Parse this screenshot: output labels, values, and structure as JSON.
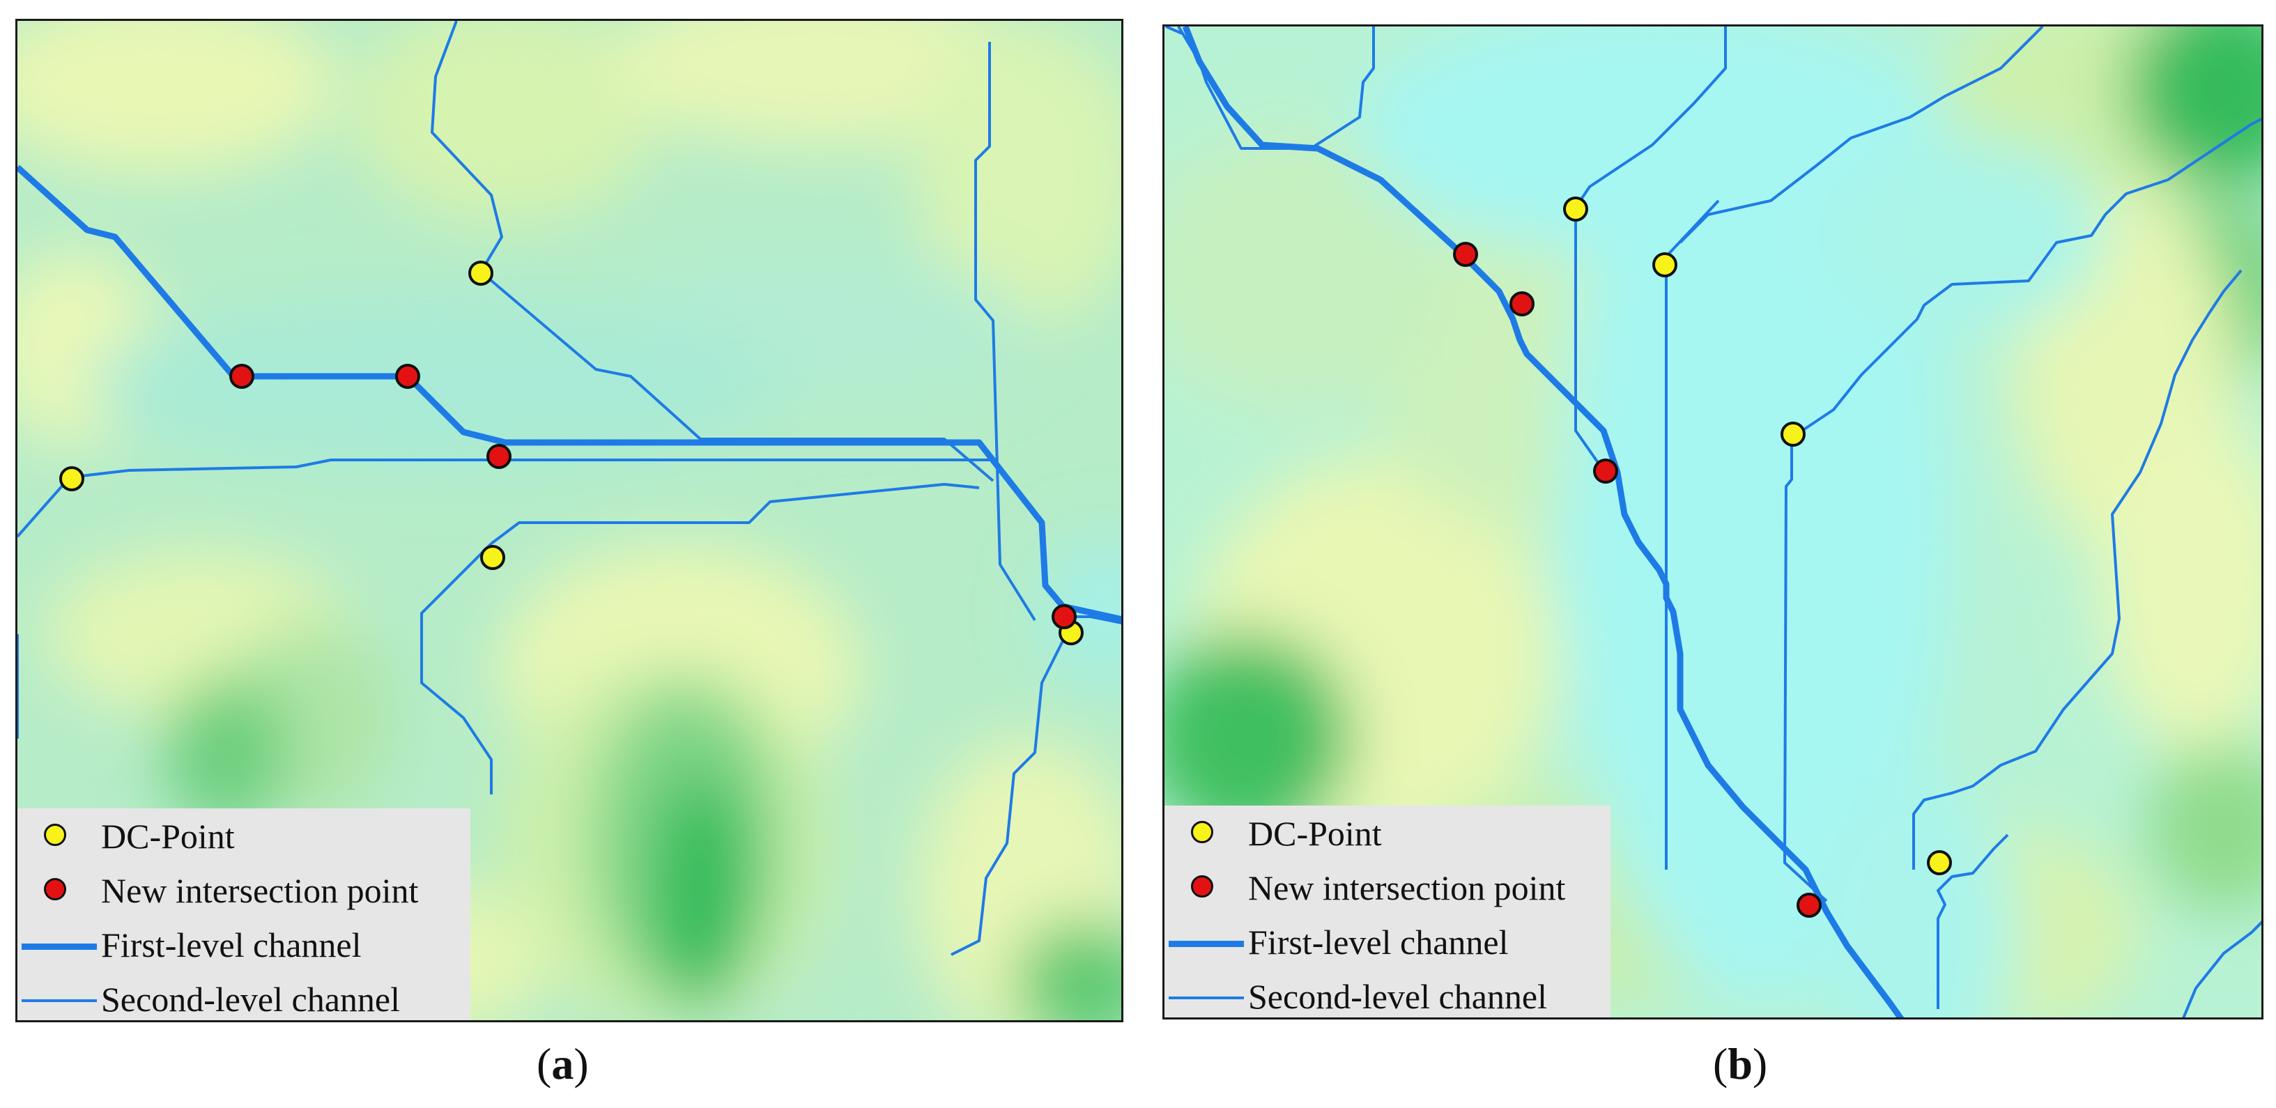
{
  "colors": {
    "first_level_channel": "#1e7be6",
    "second_level_channel": "#1e7be6",
    "dc_point": "#f7f21a",
    "new_intersection_point": "#e31212",
    "outline": "#111111"
  },
  "panels": [
    {
      "id": "a",
      "caption_open": "(",
      "caption_letter": "a",
      "caption_close": ")",
      "legend": {
        "dc_point": "DC-Point",
        "new_intersection_point": "New intersection point",
        "first_level_channel": "First-level channel",
        "second_level_channel": "Second-level channel"
      }
    },
    {
      "id": "b",
      "caption_open": "(",
      "caption_letter": "b",
      "caption_close": ")",
      "legend": {
        "dc_point": "DC-Point",
        "new_intersection_point": "New intersection point",
        "first_level_channel": "First-level channel",
        "second_level_channel": "Second-level channel"
      }
    }
  ]
}
